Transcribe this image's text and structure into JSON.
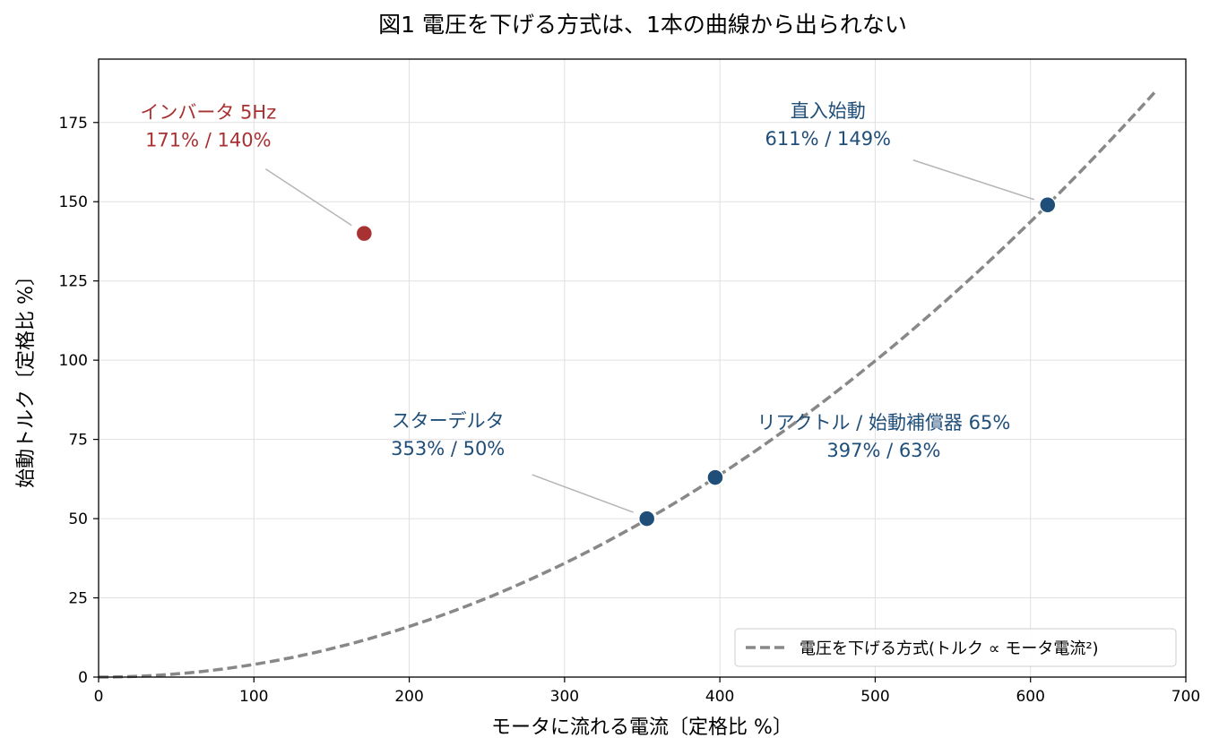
{
  "chart_data": {
    "type": "scatter",
    "title": "図1 電圧を下げる方式は、1本の曲線から出られない",
    "xlabel": "モータに流れる電流〔定格比 %〕",
    "ylabel": "始動トルク〔定格比 %〕",
    "xlim": [
      0,
      700
    ],
    "ylim": [
      0,
      195
    ],
    "x_ticks": [
      0,
      100,
      200,
      300,
      400,
      500,
      600,
      700
    ],
    "y_ticks": [
      0,
      25,
      50,
      75,
      100,
      125,
      150,
      175
    ],
    "grid": true,
    "legend_position": "lower right",
    "curve": {
      "name": "電圧を下げる方式(トルク ∝ モータ電流²)",
      "style": "dashed",
      "color": "#888888",
      "formula": "y = 149 * (x / 611)^2",
      "x_range": [
        0,
        680
      ]
    },
    "points": [
      {
        "name": "インバータ 5Hz",
        "label": "171% / 140%",
        "x": 171,
        "y": 140,
        "color": "#a83232"
      },
      {
        "name": "スターデルタ",
        "label": "353% / 50%",
        "x": 353,
        "y": 50,
        "color": "#1f4e79"
      },
      {
        "name": "リアクトル / 始動補償器 65%",
        "label": "397% / 63%",
        "x": 397,
        "y": 63,
        "color": "#1f4e79"
      },
      {
        "name": "直入始動",
        "label": "611% / 149%",
        "x": 611,
        "y": 149,
        "color": "#1f4e79"
      }
    ]
  }
}
